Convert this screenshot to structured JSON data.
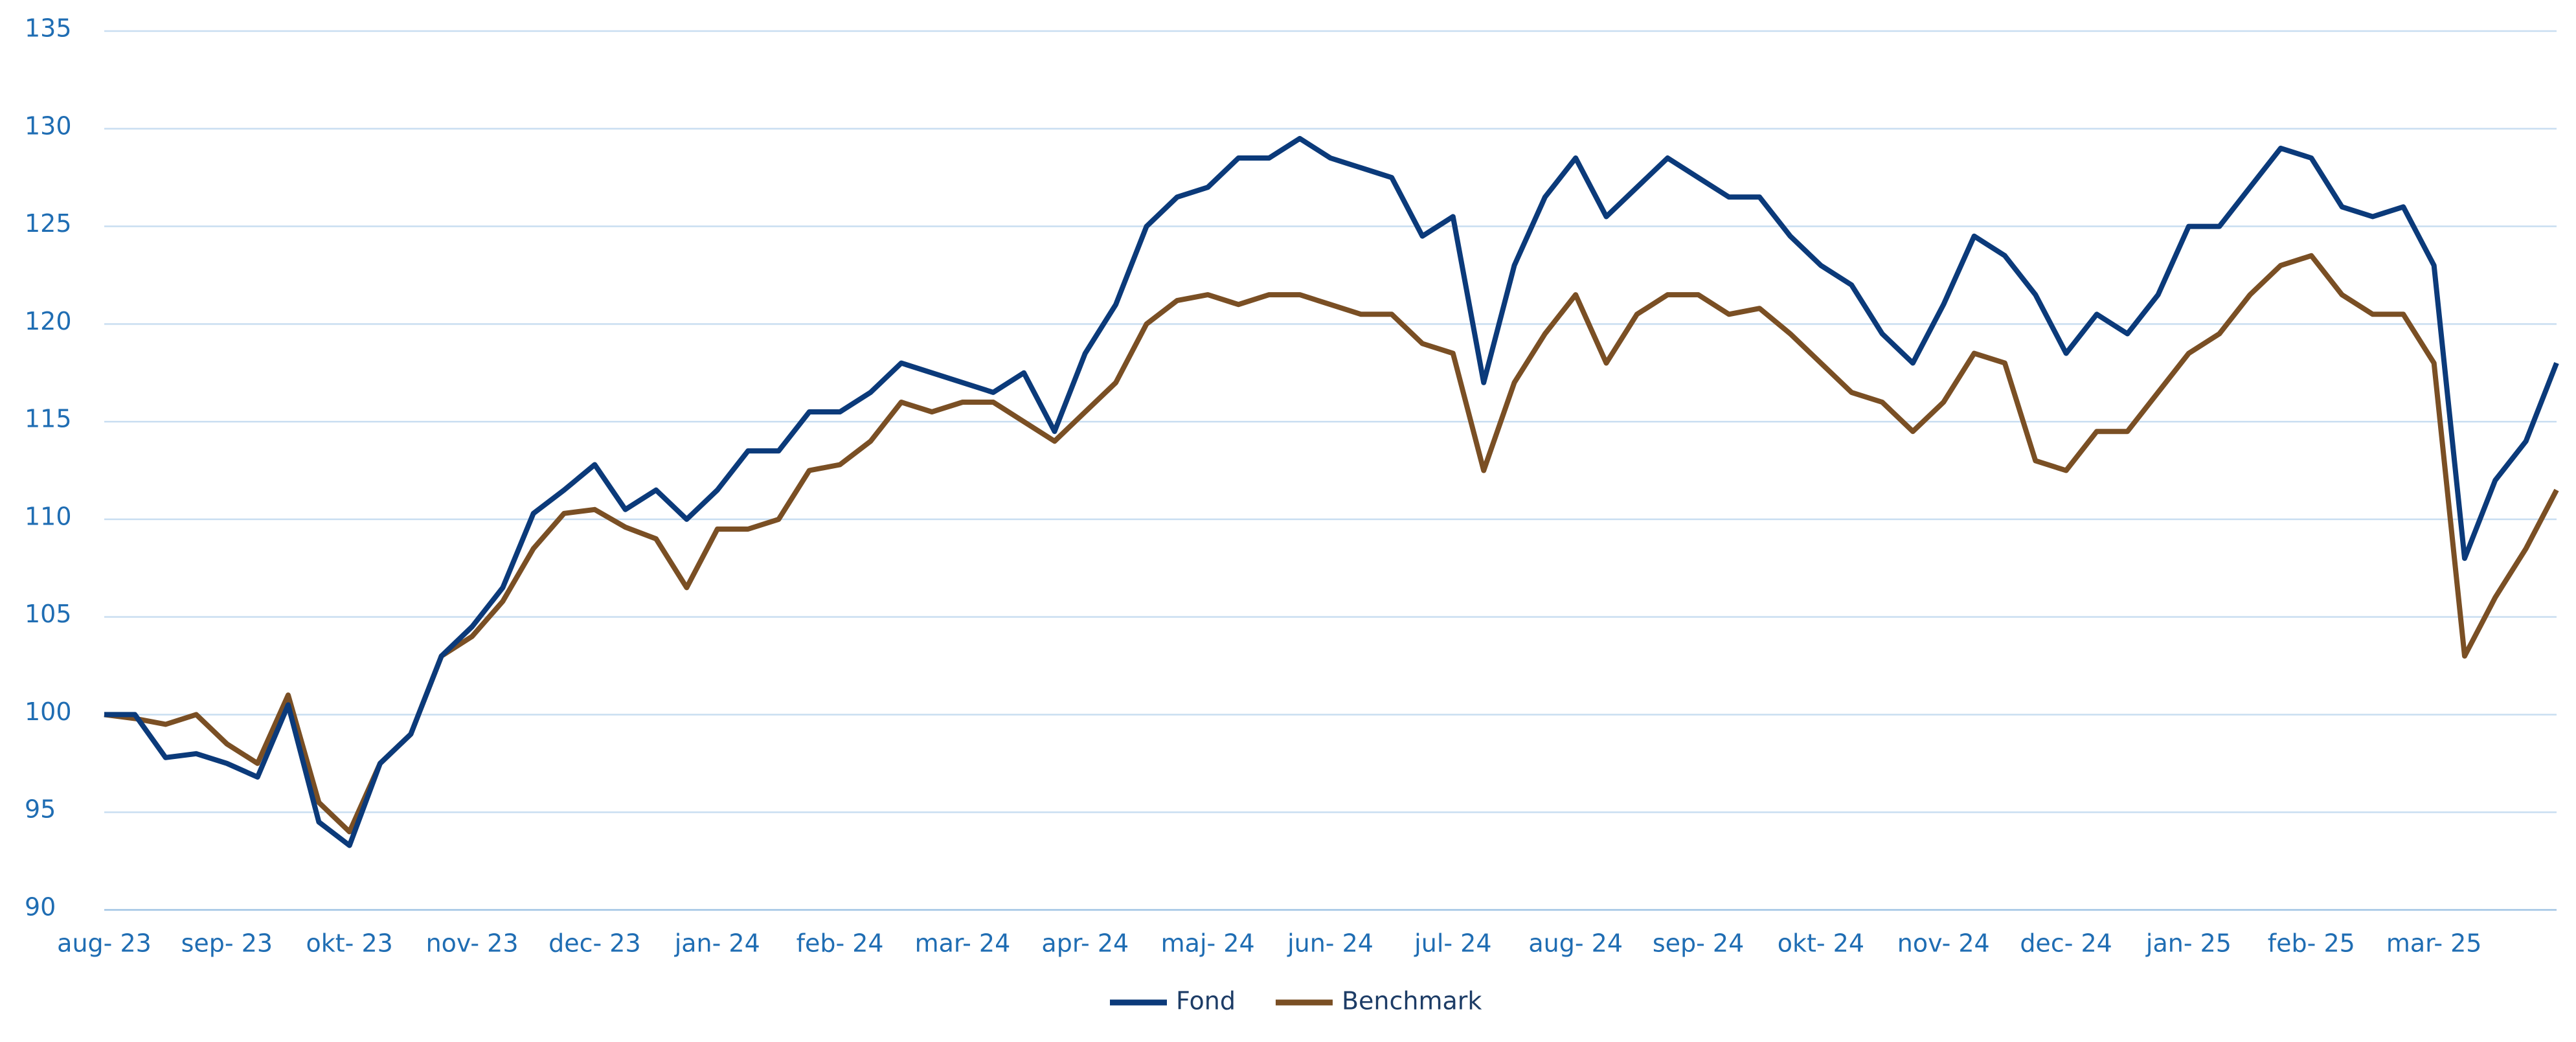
{
  "chart_data": {
    "type": "line",
    "categories": [
      "aug- 23",
      null,
      null,
      null,
      "sep- 23",
      null,
      null,
      null,
      "okt- 23",
      null,
      null,
      null,
      "nov- 23",
      null,
      null,
      null,
      "dec- 23",
      null,
      null,
      null,
      "jan- 24",
      null,
      null,
      null,
      "feb- 24",
      null,
      null,
      null,
      "mar- 24",
      null,
      null,
      null,
      "apr- 24",
      null,
      null,
      null,
      "maj- 24",
      null,
      null,
      null,
      "jun- 24",
      null,
      null,
      null,
      "jul- 24",
      null,
      null,
      null,
      "aug- 24",
      null,
      null,
      null,
      "sep- 24",
      null,
      null,
      null,
      "okt- 24",
      null,
      null,
      null,
      "nov- 24",
      null,
      null,
      null,
      "dec- 24",
      null,
      null,
      null,
      "jan- 25",
      null,
      null,
      null,
      "feb- 25",
      null,
      null,
      null,
      "mar- 25",
      null,
      null,
      null,
      null
    ],
    "series": [
      {
        "name": "Fond",
        "color": "#0b3a7a",
        "values": [
          100,
          100,
          97.8,
          98,
          97.5,
          96.8,
          100.5,
          94.5,
          93.3,
          97.5,
          99,
          103,
          104.5,
          106.5,
          110.3,
          111.5,
          112.8,
          110.5,
          111.5,
          110,
          111.5,
          113.5,
          113.5,
          115.5,
          115.5,
          116.5,
          118,
          117.5,
          117,
          116.5,
          117.5,
          114.5,
          118.5,
          121,
          125,
          126.5,
          127,
          128.5,
          128.5,
          129.5,
          128.5,
          128,
          127.5,
          124.5,
          125.5,
          117,
          123,
          126.5,
          128.5,
          125.5,
          127,
          128.5,
          127.5,
          126.5,
          126.5,
          124.5,
          123,
          122,
          119.5,
          118,
          121,
          124.5,
          123.5,
          121.5,
          118.5,
          120.5,
          119.5,
          121.5,
          125,
          125,
          127,
          129,
          128.5,
          126,
          125.5,
          126,
          123,
          108,
          112,
          114,
          118
        ]
      },
      {
        "name": "Benchmark",
        "color": "#7a4f24",
        "values": [
          100,
          99.8,
          99.5,
          100,
          98.5,
          97.5,
          101,
          95.5,
          94,
          97.5,
          99,
          103,
          104,
          105.8,
          108.5,
          110.3,
          110.5,
          109.6,
          109,
          106.5,
          109.5,
          109.5,
          110,
          112.5,
          112.8,
          114,
          116,
          115.5,
          116,
          116,
          115,
          114,
          115.5,
          117,
          120,
          121.2,
          121.5,
          121,
          121.5,
          121.5,
          121,
          120.5,
          120.5,
          119,
          118.5,
          112.5,
          117,
          119.5,
          121.5,
          118,
          120.5,
          121.5,
          121.5,
          120.5,
          120.8,
          119.5,
          118,
          116.5,
          116,
          114.5,
          116,
          118.5,
          118,
          113,
          112.5,
          114.5,
          114.5,
          116.5,
          118.5,
          119.5,
          121.5,
          123,
          123.5,
          121.5,
          120.5,
          120.5,
          118,
          103,
          106,
          108.5,
          111.5
        ]
      }
    ],
    "ylim": [
      90,
      135
    ],
    "yticks": [
      90,
      95,
      100,
      105,
      110,
      115,
      120,
      125,
      130,
      135
    ],
    "grid": true,
    "legend": "bottom"
  }
}
